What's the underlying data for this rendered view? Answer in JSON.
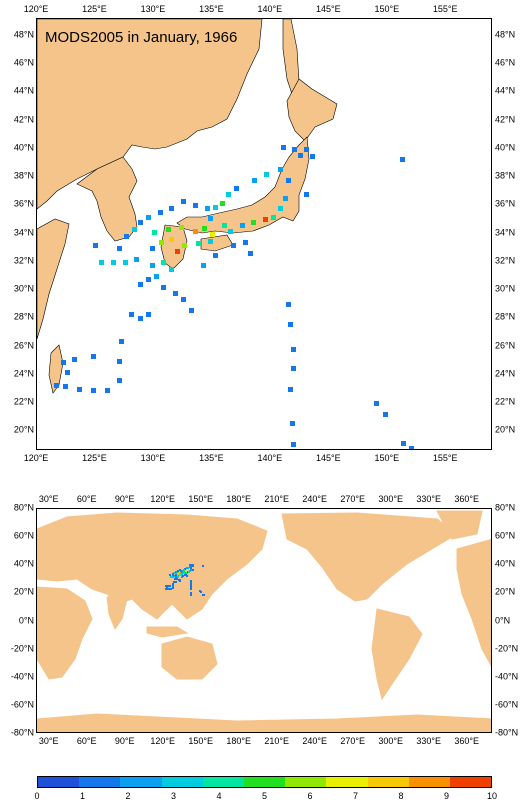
{
  "map_top": {
    "title": "MODS2005 in January, 1966",
    "lon_labels": [
      "120°E",
      "125°E",
      "130°E",
      "135°E",
      "140°E",
      "145°E",
      "150°E",
      "155°E"
    ],
    "lat_labels": [
      "48°N",
      "46°N",
      "44°N",
      "42°N",
      "40°N",
      "38°N",
      "36°N",
      "34°N",
      "32°N",
      "30°N",
      "28°N",
      "26°N",
      "24°N",
      "22°N",
      "20°N"
    ],
    "lon_range": [
      120,
      159
    ],
    "lat_range": [
      18.6,
      49.2
    ]
  },
  "map_bottom": {
    "lon_labels": [
      "30°E",
      "60°E",
      "90°E",
      "120°E",
      "150°E",
      "180°E",
      "210°E",
      "240°E",
      "270°E",
      "300°E",
      "330°E",
      "360°E"
    ],
    "lat_labels": [
      "80°N",
      "60°N",
      "40°N",
      "20°N",
      "0°N",
      "-20°N",
      "-40°N",
      "-60°N",
      "-80°N"
    ],
    "lon_range": [
      20,
      380
    ],
    "lat_range": [
      -80,
      80
    ]
  },
  "colorbar": {
    "labels": [
      "0",
      "1",
      "2",
      "3",
      "4",
      "5",
      "6",
      "7",
      "8",
      "9",
      "10"
    ],
    "colors": [
      "#1e50d8",
      "#1478ec",
      "#0aa0f0",
      "#00cce0",
      "#00e6a0",
      "#20e020",
      "#90e800",
      "#e8f000",
      "#f8c800",
      "#f89000",
      "#f04000"
    ]
  },
  "colors": {
    "land": "#f5c48b",
    "ocean": "#ffffff"
  },
  "observations": [
    {
      "lon": 141.0,
      "lat": 40.1,
      "v": 1
    },
    {
      "lon": 142.0,
      "lat": 40.0,
      "v": 1
    },
    {
      "lon": 142.5,
      "lat": 39.6,
      "v": 1
    },
    {
      "lon": 143.0,
      "lat": 40.0,
      "v": 1
    },
    {
      "lon": 143.5,
      "lat": 39.5,
      "v": 1
    },
    {
      "lon": 151.2,
      "lat": 39.3,
      "v": 1
    },
    {
      "lon": 140.8,
      "lat": 38.6,
      "v": 2
    },
    {
      "lon": 141.5,
      "lat": 37.8,
      "v": 1
    },
    {
      "lon": 139.6,
      "lat": 38.2,
      "v": 3
    },
    {
      "lon": 138.6,
      "lat": 37.8,
      "v": 2
    },
    {
      "lon": 137.0,
      "lat": 37.2,
      "v": 1
    },
    {
      "lon": 136.3,
      "lat": 36.8,
      "v": 3
    },
    {
      "lon": 135.8,
      "lat": 36.2,
      "v": 5
    },
    {
      "lon": 135.2,
      "lat": 35.9,
      "v": 3
    },
    {
      "lon": 134.5,
      "lat": 35.8,
      "v": 2
    },
    {
      "lon": 133.5,
      "lat": 36.0,
      "v": 1
    },
    {
      "lon": 132.5,
      "lat": 36.3,
      "v": 1
    },
    {
      "lon": 131.5,
      "lat": 35.8,
      "v": 1
    },
    {
      "lon": 130.5,
      "lat": 35.5,
      "v": 1
    },
    {
      "lon": 129.5,
      "lat": 35.2,
      "v": 2
    },
    {
      "lon": 128.8,
      "lat": 34.8,
      "v": 1
    },
    {
      "lon": 128.3,
      "lat": 34.3,
      "v": 3
    },
    {
      "lon": 127.6,
      "lat": 33.8,
      "v": 1
    },
    {
      "lon": 130.0,
      "lat": 34.1,
      "v": 4
    },
    {
      "lon": 131.2,
      "lat": 34.3,
      "v": 5
    },
    {
      "lon": 132.3,
      "lat": 34.5,
      "v": 6
    },
    {
      "lon": 133.5,
      "lat": 34.2,
      "v": 9
    },
    {
      "lon": 134.3,
      "lat": 34.4,
      "v": 5
    },
    {
      "lon": 135.0,
      "lat": 34.0,
      "v": 7
    },
    {
      "lon": 136.5,
      "lat": 34.2,
      "v": 3
    },
    {
      "lon": 137.5,
      "lat": 34.6,
      "v": 2
    },
    {
      "lon": 138.5,
      "lat": 34.8,
      "v": 5
    },
    {
      "lon": 139.5,
      "lat": 35.0,
      "v": 10
    },
    {
      "lon": 140.2,
      "lat": 35.2,
      "v": 4
    },
    {
      "lon": 140.8,
      "lat": 35.8,
      "v": 3
    },
    {
      "lon": 141.2,
      "lat": 36.5,
      "v": 2
    },
    {
      "lon": 132.0,
      "lat": 32.8,
      "v": 10
    },
    {
      "lon": 132.6,
      "lat": 33.2,
      "v": 6
    },
    {
      "lon": 133.8,
      "lat": 33.3,
      "v": 4
    },
    {
      "lon": 134.8,
      "lat": 33.5,
      "v": 3
    },
    {
      "lon": 130.8,
      "lat": 32.0,
      "v": 4
    },
    {
      "lon": 131.5,
      "lat": 31.5,
      "v": 3
    },
    {
      "lon": 129.8,
      "lat": 31.8,
      "v": 2
    },
    {
      "lon": 130.2,
      "lat": 31.0,
      "v": 2
    },
    {
      "lon": 129.5,
      "lat": 30.8,
      "v": 1
    },
    {
      "lon": 128.8,
      "lat": 30.4,
      "v": 1
    },
    {
      "lon": 130.8,
      "lat": 30.2,
      "v": 1
    },
    {
      "lon": 131.8,
      "lat": 29.8,
      "v": 1
    },
    {
      "lon": 132.5,
      "lat": 29.4,
      "v": 1
    },
    {
      "lon": 133.2,
      "lat": 28.6,
      "v": 1
    },
    {
      "lon": 134.2,
      "lat": 31.8,
      "v": 2
    },
    {
      "lon": 135.2,
      "lat": 32.5,
      "v": 1
    },
    {
      "lon": 136.8,
      "lat": 33.2,
      "v": 1
    },
    {
      "lon": 137.8,
      "lat": 33.4,
      "v": 1
    },
    {
      "lon": 138.2,
      "lat": 32.6,
      "v": 1
    },
    {
      "lon": 125.5,
      "lat": 32.0,
      "v": 3
    },
    {
      "lon": 126.5,
      "lat": 32.0,
      "v": 3
    },
    {
      "lon": 127.5,
      "lat": 32.0,
      "v": 3
    },
    {
      "lon": 128.5,
      "lat": 32.2,
      "v": 2
    },
    {
      "lon": 125.0,
      "lat": 33.2,
      "v": 1
    },
    {
      "lon": 127.0,
      "lat": 33.0,
      "v": 1
    },
    {
      "lon": 128.0,
      "lat": 28.3,
      "v": 1
    },
    {
      "lon": 128.8,
      "lat": 28.0,
      "v": 1
    },
    {
      "lon": 129.5,
      "lat": 28.3,
      "v": 1
    },
    {
      "lon": 127.2,
      "lat": 26.4,
      "v": 1
    },
    {
      "lon": 127.0,
      "lat": 25.0,
      "v": 1
    },
    {
      "lon": 127.0,
      "lat": 23.6,
      "v": 1
    },
    {
      "lon": 126.0,
      "lat": 22.9,
      "v": 1
    },
    {
      "lon": 124.8,
      "lat": 22.9,
      "v": 1
    },
    {
      "lon": 123.6,
      "lat": 23.0,
      "v": 1
    },
    {
      "lon": 122.4,
      "lat": 23.2,
      "v": 1
    },
    {
      "lon": 121.6,
      "lat": 23.3,
      "v": 1
    },
    {
      "lon": 122.2,
      "lat": 24.9,
      "v": 1
    },
    {
      "lon": 123.2,
      "lat": 25.1,
      "v": 1
    },
    {
      "lon": 124.8,
      "lat": 25.3,
      "v": 1
    },
    {
      "lon": 122.6,
      "lat": 24.2,
      "v": 1
    },
    {
      "lon": 141.5,
      "lat": 29.0,
      "v": 1
    },
    {
      "lon": 141.6,
      "lat": 27.6,
      "v": 1
    },
    {
      "lon": 141.9,
      "lat": 25.8,
      "v": 1
    },
    {
      "lon": 141.9,
      "lat": 24.5,
      "v": 1
    },
    {
      "lon": 141.6,
      "lat": 23.0,
      "v": 1
    },
    {
      "lon": 141.8,
      "lat": 20.6,
      "v": 1
    },
    {
      "lon": 141.9,
      "lat": 19.1,
      "v": 1
    },
    {
      "lon": 149.0,
      "lat": 22.0,
      "v": 1
    },
    {
      "lon": 149.8,
      "lat": 21.2,
      "v": 1
    },
    {
      "lon": 151.3,
      "lat": 19.2,
      "v": 1
    },
    {
      "lon": 152.0,
      "lat": 18.8,
      "v": 1
    },
    {
      "lon": 143.0,
      "lat": 36.8,
      "v": 1
    },
    {
      "lon": 136.0,
      "lat": 34.6,
      "v": 4
    },
    {
      "lon": 134.8,
      "lat": 35.1,
      "v": 2
    },
    {
      "lon": 131.5,
      "lat": 33.6,
      "v": 8
    },
    {
      "lon": 130.6,
      "lat": 33.4,
      "v": 6
    },
    {
      "lon": 129.8,
      "lat": 33.0,
      "v": 1
    }
  ]
}
